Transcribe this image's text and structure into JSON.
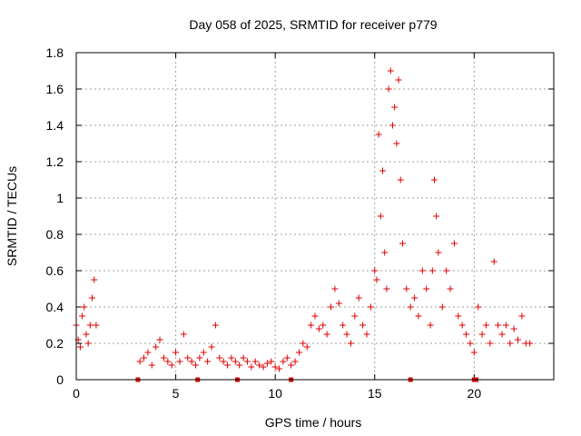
{
  "chart_data": {
    "type": "scatter",
    "title": "Day 058 of 2025, SRMTID for receiver p779",
    "xlabel": "GPS time / hours",
    "ylabel": "SRMTID / TECUs",
    "xlim": [
      0,
      24
    ],
    "ylim": [
      0,
      1.8
    ],
    "xticks": [
      0,
      5,
      10,
      15,
      20
    ],
    "xtick_labels": [
      "0",
      "5",
      "10",
      "15",
      "20"
    ],
    "yticks": [
      0,
      0.2,
      0.4,
      0.6,
      0.8,
      1,
      1.2,
      1.4,
      1.6,
      1.8
    ],
    "ytick_labels": [
      "0",
      "0.2",
      "0.4",
      "0.6",
      "0.8",
      "1",
      "1.2",
      "1.4",
      "1.6",
      "1.8"
    ],
    "grid": true,
    "marker": "plus",
    "color": "#e00000",
    "series": [
      {
        "name": "SRMTID",
        "x": [
          0.0,
          0.1,
          0.2,
          0.3,
          0.4,
          0.5,
          0.6,
          0.7,
          0.8,
          0.9,
          1.0,
          3.2,
          3.4,
          3.6,
          3.8,
          4.0,
          4.2,
          4.4,
          4.6,
          4.8,
          5.0,
          5.2,
          5.4,
          5.6,
          5.8,
          6.0,
          6.2,
          6.4,
          6.6,
          6.8,
          7.0,
          7.2,
          7.4,
          7.6,
          7.8,
          8.0,
          8.2,
          8.4,
          8.6,
          8.8,
          9.0,
          9.2,
          9.4,
          9.6,
          9.8,
          10.0,
          10.2,
          10.4,
          10.6,
          10.8,
          11.0,
          11.2,
          11.4,
          11.6,
          11.8,
          12.0,
          12.2,
          12.4,
          12.6,
          12.8,
          13.0,
          13.2,
          13.4,
          13.6,
          13.8,
          14.0,
          14.2,
          14.4,
          14.6,
          14.8,
          15.0,
          15.1,
          15.2,
          15.3,
          15.4,
          15.5,
          15.6,
          15.7,
          15.8,
          15.9,
          16.0,
          16.1,
          16.2,
          16.3,
          16.4,
          16.6,
          16.8,
          17.0,
          17.2,
          17.4,
          17.6,
          17.8,
          17.9,
          18.0,
          18.1,
          18.2,
          18.4,
          18.6,
          18.8,
          19.0,
          19.2,
          19.4,
          19.6,
          19.8,
          20.0,
          20.2,
          20.4,
          20.6,
          20.8,
          21.0,
          21.2,
          21.4,
          21.6,
          21.8,
          22.0,
          22.2,
          22.4,
          22.6,
          22.8
        ],
        "y": [
          0.3,
          0.22,
          0.18,
          0.35,
          0.4,
          0.25,
          0.2,
          0.3,
          0.45,
          0.55,
          0.3,
          0.1,
          0.12,
          0.15,
          0.08,
          0.18,
          0.22,
          0.12,
          0.1,
          0.08,
          0.15,
          0.1,
          0.25,
          0.12,
          0.1,
          0.08,
          0.12,
          0.15,
          0.1,
          0.18,
          0.3,
          0.12,
          0.1,
          0.08,
          0.12,
          0.1,
          0.08,
          0.12,
          0.1,
          0.07,
          0.1,
          0.08,
          0.07,
          0.09,
          0.1,
          0.07,
          0.06,
          0.1,
          0.12,
          0.08,
          0.1,
          0.15,
          0.2,
          0.18,
          0.3,
          0.35,
          0.28,
          0.3,
          0.25,
          0.4,
          0.5,
          0.42,
          0.3,
          0.25,
          0.2,
          0.35,
          0.45,
          0.3,
          0.25,
          0.4,
          0.6,
          0.55,
          1.35,
          0.9,
          1.15,
          0.7,
          0.5,
          1.6,
          1.7,
          1.4,
          1.5,
          1.3,
          1.65,
          1.1,
          0.75,
          0.5,
          0.4,
          0.45,
          0.35,
          0.6,
          0.5,
          0.3,
          0.6,
          1.1,
          0.9,
          0.7,
          0.4,
          0.6,
          0.5,
          0.75,
          0.35,
          0.3,
          0.25,
          0.2,
          0.15,
          0.4,
          0.25,
          0.3,
          0.2,
          0.65,
          0.3,
          0.25,
          0.3,
          0.2,
          0.28,
          0.22,
          0.35,
          0.2,
          0.2
        ]
      }
    ],
    "gap_markers_x": [
      3.1,
      6.1,
      8.1,
      10.8,
      16.8,
      20.0,
      20.1
    ]
  }
}
